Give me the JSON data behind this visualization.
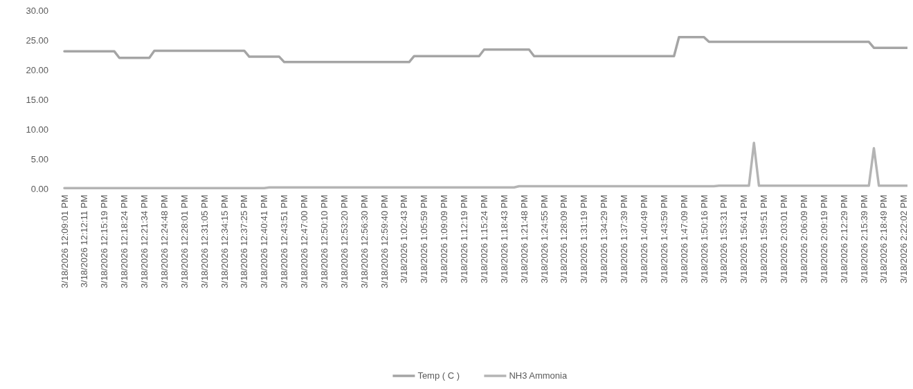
{
  "chart_data": {
    "type": "line",
    "categories": [
      "3/18/2026 12:09:01 PM",
      null,
      null,
      null,
      "3/18/2026 12:12:11 PM",
      null,
      null,
      null,
      "3/18/2026 12:15:19 PM",
      null,
      null,
      null,
      "3/18/2026 12:18:24 PM",
      null,
      null,
      null,
      "3/18/2026 12:21:34 PM",
      null,
      null,
      null,
      "3/18/2026 12:24:48 PM",
      null,
      null,
      null,
      "3/18/2026 12:28:01 PM",
      null,
      null,
      null,
      "3/18/2026 12:31:05 PM",
      null,
      null,
      null,
      "3/18/2026 12:34:15 PM",
      null,
      null,
      null,
      "3/18/2026 12:37:25 PM",
      null,
      null,
      null,
      "3/18/2026 12:40:41 PM",
      null,
      null,
      null,
      "3/18/2026 12:43:51 PM",
      null,
      null,
      null,
      "3/18/2026 12:47:00 PM",
      null,
      null,
      null,
      "3/18/2026 12:50:10 PM",
      null,
      null,
      null,
      "3/18/2026 12:53:20 PM",
      null,
      null,
      null,
      "3/18/2026 12:56:30 PM",
      null,
      null,
      null,
      "3/18/2026 12:59:40 PM",
      null,
      null,
      null,
      "3/18/2026 1:02:43 PM",
      null,
      null,
      null,
      "3/18/2026 1:05:59 PM",
      null,
      null,
      null,
      "3/18/2026 1:09:09 PM",
      null,
      null,
      null,
      "3/18/2026 1:12:19 PM",
      null,
      null,
      null,
      "3/18/2026 1:15:24 PM",
      null,
      null,
      null,
      "3/18/2026 1:18:43 PM",
      null,
      null,
      null,
      "3/18/2026 1:21:48 PM",
      null,
      null,
      null,
      "3/18/2026 1:24:55 PM",
      null,
      null,
      null,
      "3/18/2026 1:28:09 PM",
      null,
      null,
      null,
      "3/18/2026 1:31:19 PM",
      null,
      null,
      null,
      "3/18/2026 1:34:29 PM",
      null,
      null,
      null,
      "3/18/2026 1:37:39 PM",
      null,
      null,
      null,
      "3/18/2026 1:40:49 PM",
      null,
      null,
      null,
      "3/18/2026 1:43:59 PM",
      null,
      null,
      null,
      "3/18/2026 1:47:09 PM",
      null,
      null,
      null,
      "3/18/2026 1:50:16 PM",
      null,
      null,
      null,
      "3/18/2026 1:53:31 PM",
      null,
      null,
      null,
      "3/18/2026 1:56:41 PM",
      null,
      null,
      null,
      "3/18/2026 1:59:51 PM",
      null,
      null,
      null,
      "3/18/2026 2:03:01 PM",
      null,
      null,
      null,
      "3/18/2026 2:06:09 PM",
      null,
      null,
      null,
      "3/18/2026 2:09:19 PM",
      null,
      null,
      null,
      "3/18/2026 2:12:29 PM",
      null,
      null,
      null,
      "3/18/2026 2:15:39 PM",
      null,
      null,
      null,
      "3/18/2026 2:18:49 PM",
      null,
      null,
      null,
      "3/18/2026 2:22:02 PM",
      null
    ],
    "series": [
      {
        "name": "Temp ( C )",
        "color": "#a5a5a5",
        "values": [
          23.1,
          23.1,
          23.1,
          23.1,
          23.1,
          23.1,
          23.1,
          23.1,
          23.1,
          23.1,
          23.1,
          22.0,
          22.0,
          22.0,
          22.0,
          22.0,
          22.0,
          22.0,
          23.2,
          23.2,
          23.2,
          23.2,
          23.2,
          23.2,
          23.2,
          23.2,
          23.2,
          23.2,
          23.2,
          23.2,
          23.2,
          23.2,
          23.2,
          23.2,
          23.2,
          23.2,
          23.2,
          22.2,
          22.2,
          22.2,
          22.2,
          22.2,
          22.2,
          22.2,
          21.3,
          21.3,
          21.3,
          21.3,
          21.3,
          21.3,
          21.3,
          21.3,
          21.3,
          21.3,
          21.3,
          21.3,
          21.3,
          21.3,
          21.3,
          21.3,
          21.3,
          21.3,
          21.3,
          21.3,
          21.3,
          21.3,
          21.3,
          21.3,
          21.3,
          21.3,
          22.3,
          22.3,
          22.3,
          22.3,
          22.3,
          22.3,
          22.3,
          22.3,
          22.3,
          22.3,
          22.3,
          22.3,
          22.3,
          22.3,
          23.4,
          23.4,
          23.4,
          23.4,
          23.4,
          23.4,
          23.4,
          23.4,
          23.4,
          23.4,
          22.3,
          22.3,
          22.3,
          22.3,
          22.3,
          22.3,
          22.3,
          22.3,
          22.3,
          22.3,
          22.3,
          22.3,
          22.3,
          22.3,
          22.3,
          22.3,
          22.3,
          22.3,
          22.3,
          22.3,
          22.3,
          22.3,
          22.3,
          22.3,
          22.3,
          22.3,
          22.3,
          22.3,
          22.3,
          25.5,
          25.5,
          25.5,
          25.5,
          25.5,
          25.5,
          24.7,
          24.7,
          24.7,
          24.7,
          24.7,
          24.7,
          24.7,
          24.7,
          24.7,
          24.7,
          24.7,
          24.7,
          24.7,
          24.7,
          24.7,
          24.7,
          24.7,
          24.7,
          24.7,
          24.7,
          24.7,
          24.7,
          24.7,
          24.7,
          24.7,
          24.7,
          24.7,
          24.7,
          24.7,
          24.7,
          24.7,
          24.7,
          24.7,
          23.7,
          23.7,
          23.7,
          23.7,
          23.7,
          23.7,
          23.7,
          23.7
        ]
      },
      {
        "name": "NH3 Ammonia",
        "color": "#b4b4b4",
        "values": [
          0.1,
          0.1,
          0.1,
          0.1,
          0.1,
          0.1,
          0.1,
          0.1,
          0.1,
          0.1,
          0.1,
          0.1,
          0.1,
          0.1,
          0.1,
          0.1,
          0.1,
          0.1,
          0.1,
          0.1,
          0.1,
          0.1,
          0.1,
          0.1,
          0.1,
          0.1,
          0.1,
          0.1,
          0.1,
          0.1,
          0.1,
          0.1,
          0.1,
          0.1,
          0.1,
          0.1,
          0.1,
          0.1,
          0.1,
          0.1,
          0.1,
          0.2,
          0.2,
          0.2,
          0.2,
          0.2,
          0.2,
          0.2,
          0.2,
          0.2,
          0.2,
          0.2,
          0.2,
          0.2,
          0.2,
          0.2,
          0.2,
          0.2,
          0.2,
          0.2,
          0.2,
          0.2,
          0.2,
          0.2,
          0.2,
          0.2,
          0.2,
          0.2,
          0.2,
          0.2,
          0.2,
          0.2,
          0.2,
          0.2,
          0.2,
          0.2,
          0.2,
          0.2,
          0.2,
          0.2,
          0.2,
          0.2,
          0.2,
          0.2,
          0.2,
          0.2,
          0.2,
          0.2,
          0.2,
          0.2,
          0.2,
          0.4,
          0.4,
          0.4,
          0.4,
          0.4,
          0.4,
          0.4,
          0.4,
          0.4,
          0.4,
          0.4,
          0.4,
          0.4,
          0.4,
          0.4,
          0.4,
          0.4,
          0.4,
          0.4,
          0.4,
          0.4,
          0.4,
          0.4,
          0.4,
          0.4,
          0.4,
          0.4,
          0.4,
          0.4,
          0.4,
          0.4,
          0.4,
          0.4,
          0.4,
          0.4,
          0.4,
          0.4,
          0.4,
          0.4,
          0.4,
          0.5,
          0.5,
          0.5,
          0.5,
          0.5,
          0.5,
          0.5,
          7.7,
          0.5,
          0.5,
          0.5,
          0.5,
          0.5,
          0.5,
          0.5,
          0.5,
          0.5,
          0.5,
          0.5,
          0.5,
          0.5,
          0.5,
          0.5,
          0.5,
          0.5,
          0.5,
          0.5,
          0.5,
          0.5,
          0.5,
          0.5,
          6.8,
          0.5,
          0.5,
          0.5,
          0.5,
          0.5,
          0.5,
          0.5
        ]
      }
    ],
    "ylim": [
      0,
      30
    ],
    "yticks": [
      {
        "value": 0,
        "label": "0.00"
      },
      {
        "value": 5,
        "label": "5.00"
      },
      {
        "value": 10,
        "label": "10.00"
      },
      {
        "value": 15,
        "label": "15.00"
      },
      {
        "value": 20,
        "label": "20.00"
      },
      {
        "value": 25,
        "label": "25.00"
      },
      {
        "value": 30,
        "label": "30.00"
      }
    ],
    "legend": "bottom"
  }
}
